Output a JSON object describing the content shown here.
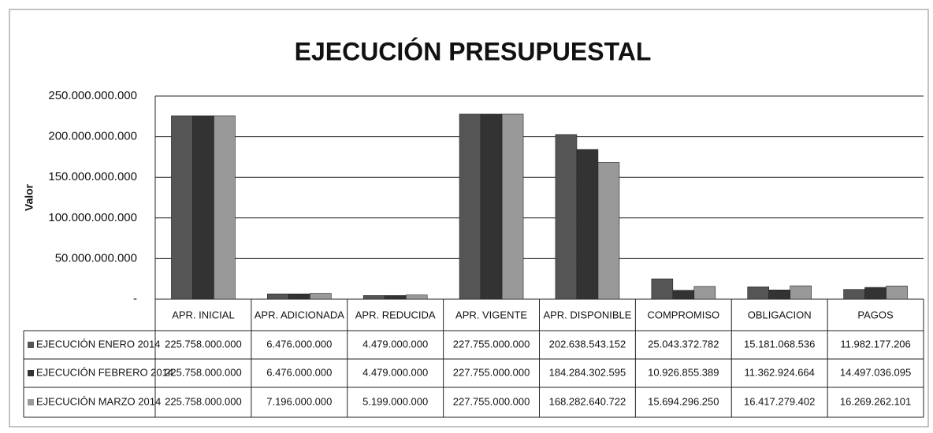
{
  "chart_data": {
    "type": "bar",
    "title": "EJECUCIÓN PRESUPUESTAL",
    "y_label": "Valor",
    "categories": [
      "APR. INICIAL",
      "APR. ADICIONADA",
      "APR. REDUCIDA",
      "APR. VIGENTE",
      "APR. DISPONIBLE",
      "COMPROMISO",
      "OBLIGACION",
      "PAGOS"
    ],
    "series": [
      {
        "name": "EJECUCIÓN ENERO 2014",
        "color": "#555555",
        "values": [
          225758000000,
          6476000000,
          4479000000,
          227755000000,
          202638543152,
          25043372782,
          15181068536,
          11982177206
        ],
        "value_labels": [
          "225.758.000.000",
          "6.476.000.000",
          "4.479.000.000",
          "227.755.000.000",
          "202.638.543.152",
          "25.043.372.782",
          "15.181.068.536",
          "11.982.177.206"
        ]
      },
      {
        "name": "EJECUCIÓN FEBRERO 2014",
        "color": "#333333",
        "values": [
          225758000000,
          6476000000,
          4479000000,
          227755000000,
          184284302595,
          10926855389,
          11362924664,
          14497036095
        ],
        "value_labels": [
          "225.758.000.000",
          "6.476.000.000",
          "4.479.000.000",
          "227.755.000.000",
          "184.284.302.595",
          "10.926.855.389",
          "11.362.924.664",
          "14.497.036.095"
        ]
      },
      {
        "name": "EJECUCIÓN MARZO 2014",
        "color": "#999999",
        "values": [
          225758000000,
          7196000000,
          5199000000,
          227755000000,
          168282640722,
          15694296250,
          16417279402,
          16269262101
        ],
        "value_labels": [
          "225.758.000.000",
          "7.196.000.000",
          "5.199.000.000",
          "227.755.000.000",
          "168.282.640.722",
          "15.694.296.250",
          "16.417.279.402",
          "16.269.262.101"
        ]
      }
    ],
    "ylim": [
      0,
      250000000000
    ],
    "yticks": [
      {
        "value": 0,
        "label": "-"
      },
      {
        "value": 50000000000,
        "label": "50.000.000.000"
      },
      {
        "value": 100000000000,
        "label": "100.000.000.000"
      },
      {
        "value": 150000000000,
        "label": "150.000.000.000"
      },
      {
        "value": 200000000000,
        "label": "200.000.000.000"
      },
      {
        "value": 250000000000,
        "label": "250.000.000.000"
      }
    ],
    "grid": true
  }
}
